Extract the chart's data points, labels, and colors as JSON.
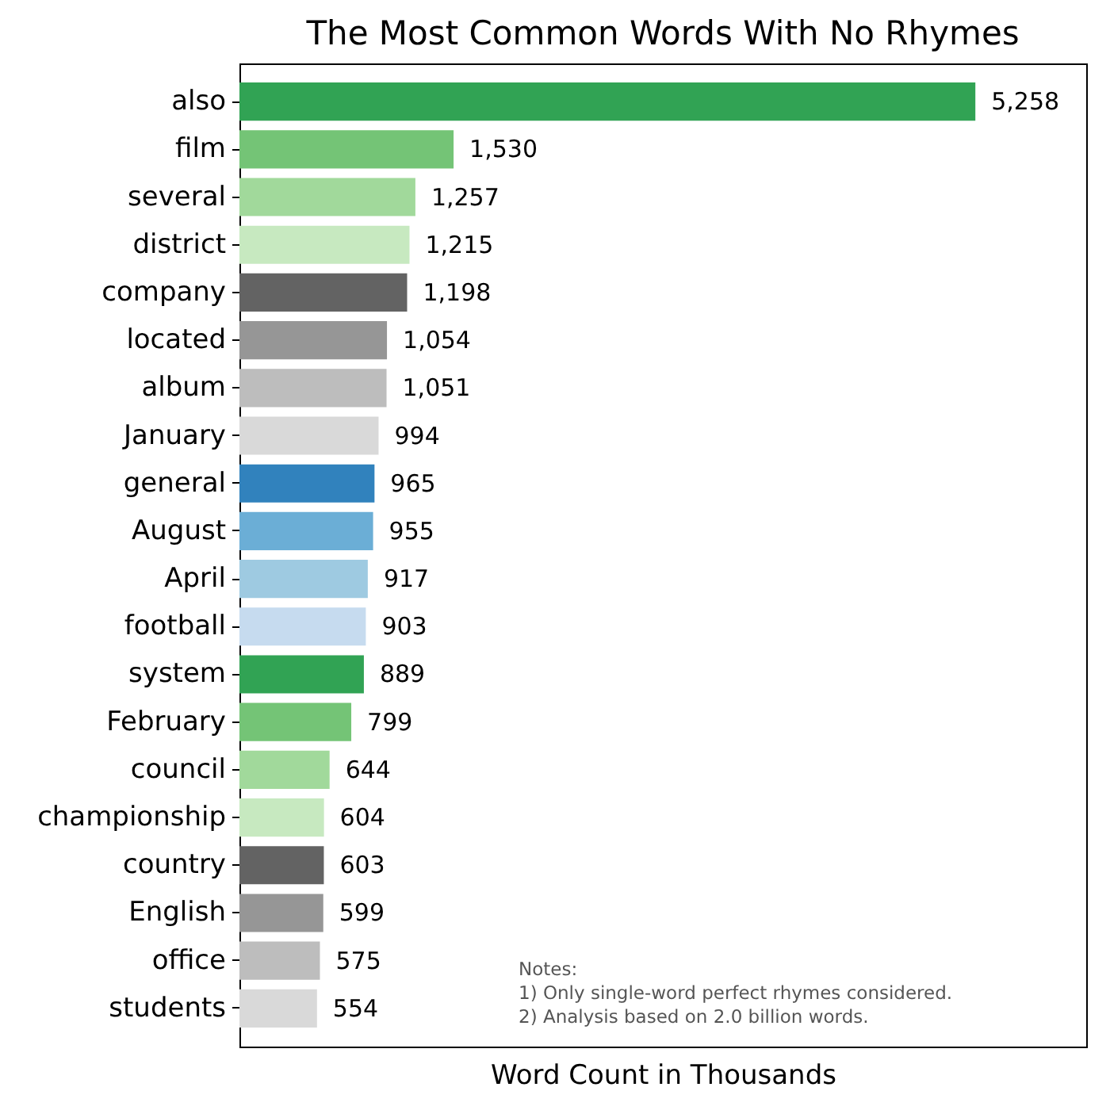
{
  "chart_data": {
    "type": "bar",
    "orientation": "horizontal",
    "title": "The Most Common Words With No Rhymes",
    "xlabel": "Word Count in Thousands",
    "categories": [
      "also",
      "film",
      "several",
      "district",
      "company",
      "located",
      "album",
      "January",
      "general",
      "August",
      "April",
      "football",
      "system",
      "February",
      "council",
      "championship",
      "country",
      "English",
      "office",
      "students"
    ],
    "values": [
      5258,
      1530,
      1257,
      1215,
      1198,
      1054,
      1051,
      994,
      965,
      955,
      917,
      903,
      889,
      799,
      644,
      604,
      603,
      599,
      575,
      554
    ],
    "value_labels": [
      "5,258",
      "1,530",
      "1,257",
      "1,215",
      "1,198",
      "1,054",
      "1,051",
      "994",
      "965",
      "955",
      "917",
      "903",
      "889",
      "799",
      "644",
      "604",
      "603",
      "599",
      "575",
      "554"
    ],
    "colors": [
      "#31a354",
      "#74c476",
      "#a1d99b",
      "#c7e9c0",
      "#636363",
      "#969696",
      "#bdbdbd",
      "#d9d9d9",
      "#3182bd",
      "#6baed6",
      "#9ecae1",
      "#c6dbef",
      "#31a354",
      "#74c476",
      "#a1d99b",
      "#c7e9c0",
      "#636363",
      "#969696",
      "#bdbdbd",
      "#d9d9d9"
    ],
    "xlim": [
      0,
      6050
    ],
    "tick_labels": "y",
    "annotations": [
      "Notes:",
      "1) Only single-word perfect rhymes considered.",
      "2) Analysis based on 2.0 billion words."
    ]
  }
}
